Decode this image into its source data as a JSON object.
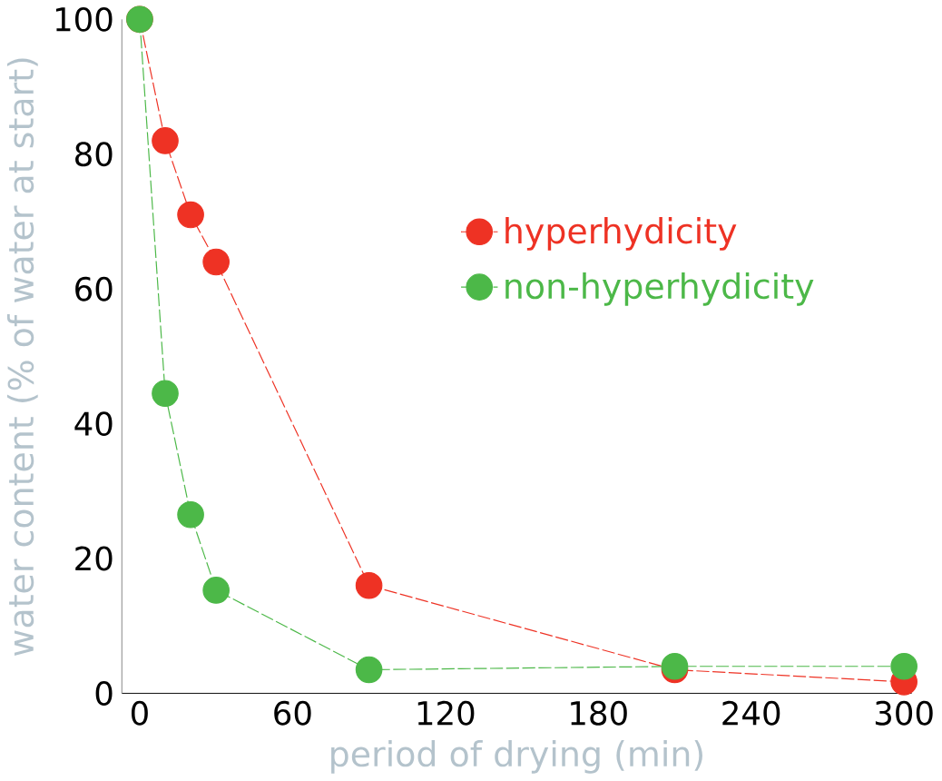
{
  "chart_data": {
    "type": "line",
    "xlabel": "period of drying (min)",
    "ylabel": "water content (% of water at start)",
    "xlim": [
      -7,
      303
    ],
    "ylim": [
      0,
      100
    ],
    "xticks": [
      0,
      60,
      120,
      180,
      240,
      300
    ],
    "yticks": [
      0,
      20,
      40,
      60,
      80,
      100
    ],
    "grid": false,
    "legend": "right",
    "marker": "circle",
    "line_style": "dashed",
    "series": [
      {
        "name": "hyperhydicity",
        "color": "#ee3224",
        "x": [
          0,
          10,
          20,
          30,
          90,
          210,
          300
        ],
        "values": [
          100,
          82,
          71,
          64,
          16,
          3.5,
          1.7
        ]
      },
      {
        "name": "non-hyperhydicity",
        "color": "#4cb848",
        "x": [
          0,
          10,
          20,
          30,
          90,
          210,
          300
        ],
        "values": [
          100,
          44.5,
          26.5,
          15.3,
          3.5,
          4,
          4
        ]
      }
    ]
  }
}
